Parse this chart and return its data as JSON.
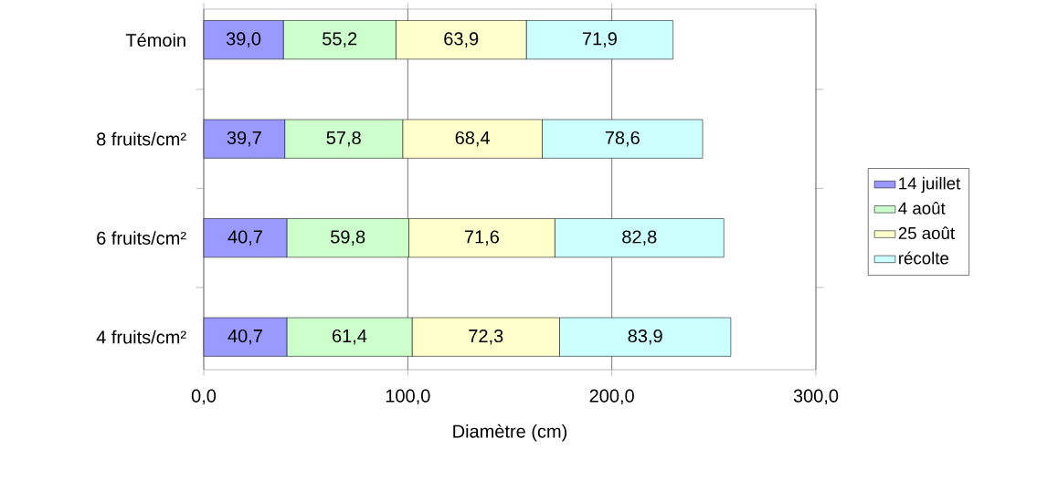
{
  "chart_data": {
    "type": "bar",
    "orientation": "horizontal",
    "stacked": true,
    "categories": [
      "Témoin",
      "8 fruits/cm²",
      "6 fruits/cm²",
      "4 fruits/cm²"
    ],
    "series": [
      {
        "name": "14 juillet",
        "color": "#9999ff",
        "values": [
          39.0,
          39.7,
          40.7,
          40.7
        ],
        "value_labels": [
          "39,0",
          "39,7",
          "40,7",
          "40,7"
        ]
      },
      {
        "name": "4 août",
        "color": "#ccffcc",
        "values": [
          55.2,
          57.8,
          59.8,
          61.4
        ],
        "value_labels": [
          "55,2",
          "57,8",
          "59,8",
          "61,4"
        ]
      },
      {
        "name": "25 août",
        "color": "#ffffcc",
        "values": [
          63.9,
          68.4,
          71.6,
          72.3
        ],
        "value_labels": [
          "63,9",
          "68,4",
          "71,6",
          "72,3"
        ]
      },
      {
        "name": "récolte",
        "color": "#ccffff",
        "values": [
          71.9,
          78.6,
          82.8,
          83.9
        ],
        "value_labels": [
          "71,9",
          "78,6",
          "82,8",
          "83,9"
        ]
      }
    ],
    "xlabel": "Diamètre (cm)",
    "xlim": [
      0,
      300
    ],
    "xticks": [
      {
        "value": 0,
        "label": "0,0"
      },
      {
        "value": 100,
        "label": "100,0"
      },
      {
        "value": 200,
        "label": "200,0"
      },
      {
        "value": 300,
        "label": "300,0"
      }
    ],
    "grid": "x",
    "legend": "right"
  }
}
